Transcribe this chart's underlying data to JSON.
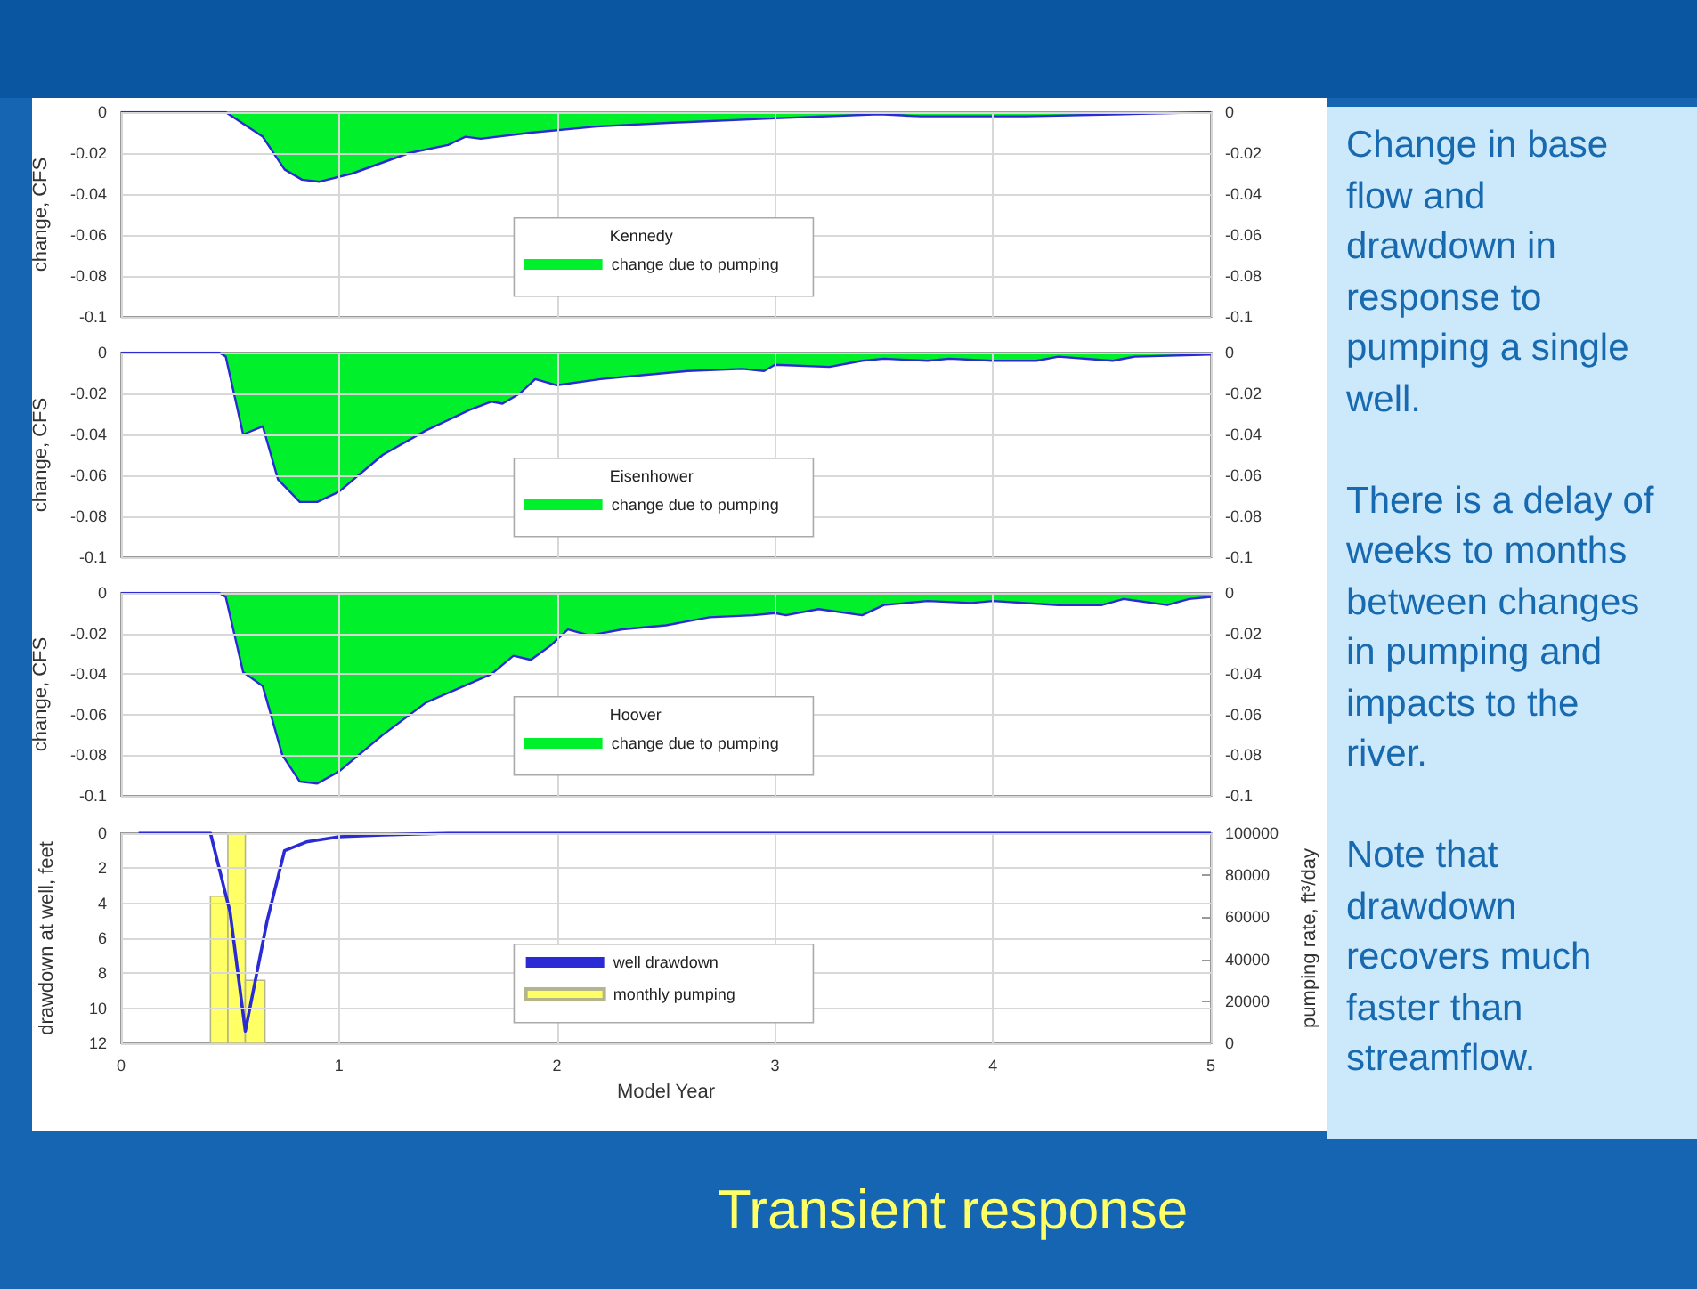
{
  "chart_data": [
    {
      "type": "area",
      "ylabel": "change, CFS",
      "legend_title": "Kennedy",
      "legend": "bottom",
      "grid": true,
      "marker": "none",
      "tick_labels": "y",
      "xlim": [
        0,
        5
      ],
      "xticks": [
        0,
        1,
        2,
        3,
        4,
        5
      ],
      "ylim": [
        -0.1,
        0
      ],
      "yticks": [
        -0.1,
        -0.08,
        -0.06,
        -0.04,
        -0.02,
        0
      ],
      "y2lim": [
        -0.1,
        0
      ],
      "y2ticks": [
        -0.1,
        -0.08,
        -0.06,
        -0.04,
        -0.02,
        0
      ],
      "x": [
        0,
        0.48,
        0.65,
        0.75,
        0.83,
        0.91,
        1.06,
        1.32,
        1.5,
        1.58,
        1.65,
        1.88,
        2.18,
        2.55,
        3.0,
        3.48,
        3.67,
        4.15,
        4.6,
        5
      ],
      "series": [
        {
          "name": "change due to pumping",
          "color": "#00f02c",
          "values": [
            0,
            0,
            -0.012,
            -0.028,
            -0.033,
            -0.034,
            -0.03,
            -0.02,
            -0.016,
            -0.012,
            -0.013,
            -0.01,
            -0.007,
            -0.005,
            -0.003,
            -0.001,
            -0.002,
            -0.002,
            -0.001,
            0
          ]
        }
      ]
    },
    {
      "type": "area",
      "ylabel": "change, CFS",
      "legend_title": "Eisenhower",
      "legend": "bottom",
      "grid": true,
      "marker": "none",
      "tick_labels": "y",
      "xlim": [
        0,
        5
      ],
      "xticks": [
        0,
        1,
        2,
        3,
        4,
        5
      ],
      "ylim": [
        -0.1,
        0
      ],
      "yticks": [
        -0.1,
        -0.08,
        -0.06,
        -0.04,
        -0.02,
        0
      ],
      "y2lim": [
        -0.1,
        0
      ],
      "y2ticks": [
        -0.1,
        -0.08,
        -0.06,
        -0.04,
        -0.02,
        0
      ],
      "x": [
        0,
        0.45,
        0.48,
        0.56,
        0.65,
        0.72,
        0.82,
        0.9,
        1.0,
        1.2,
        1.4,
        1.6,
        1.7,
        1.75,
        1.83,
        1.9,
        2.0,
        2.2,
        2.4,
        2.6,
        2.85,
        2.95,
        3.0,
        3.25,
        3.4,
        3.5,
        3.7,
        3.8,
        4.0,
        4.2,
        4.3,
        4.55,
        4.65,
        5
      ],
      "series": [
        {
          "name": "change due to pumping",
          "color": "#00f02c",
          "values": [
            0,
            0,
            -0.002,
            -0.04,
            -0.036,
            -0.062,
            -0.073,
            -0.073,
            -0.068,
            -0.05,
            -0.038,
            -0.028,
            -0.024,
            -0.025,
            -0.02,
            -0.013,
            -0.016,
            -0.013,
            -0.011,
            -0.009,
            -0.008,
            -0.009,
            -0.006,
            -0.007,
            -0.004,
            -0.003,
            -0.004,
            -0.003,
            -0.004,
            -0.004,
            -0.002,
            -0.004,
            -0.002,
            -0.001
          ]
        }
      ]
    },
    {
      "type": "area",
      "ylabel": "change, CFS",
      "legend_title": "Hoover",
      "legend": "bottom",
      "grid": true,
      "marker": "none",
      "tick_labels": "y",
      "xlim": [
        0,
        5
      ],
      "xticks": [
        0,
        1,
        2,
        3,
        4,
        5
      ],
      "ylim": [
        -0.1,
        0
      ],
      "yticks": [
        -0.1,
        -0.08,
        -0.06,
        -0.04,
        -0.02,
        0
      ],
      "y2lim": [
        -0.1,
        0
      ],
      "y2ticks": [
        -0.1,
        -0.08,
        -0.06,
        -0.04,
        -0.02,
        0
      ],
      "x": [
        0,
        0.45,
        0.48,
        0.56,
        0.65,
        0.74,
        0.82,
        0.9,
        1.0,
        1.2,
        1.4,
        1.55,
        1.7,
        1.8,
        1.88,
        1.97,
        2.05,
        2.15,
        2.3,
        2.5,
        2.7,
        2.9,
        3.0,
        3.05,
        3.2,
        3.4,
        3.5,
        3.7,
        3.9,
        4.0,
        4.3,
        4.5,
        4.6,
        4.8,
        4.9,
        5
      ],
      "series": [
        {
          "name": "change due to pumping",
          "color": "#00f02c",
          "values": [
            0,
            0,
            -0.002,
            -0.039,
            -0.046,
            -0.08,
            -0.093,
            -0.094,
            -0.088,
            -0.07,
            -0.054,
            -0.047,
            -0.04,
            -0.031,
            -0.033,
            -0.026,
            -0.018,
            -0.021,
            -0.018,
            -0.016,
            -0.012,
            -0.011,
            -0.01,
            -0.011,
            -0.008,
            -0.011,
            -0.006,
            -0.004,
            -0.005,
            -0.004,
            -0.006,
            -0.006,
            -0.003,
            -0.006,
            -0.003,
            -0.002
          ]
        }
      ]
    },
    {
      "type": "line",
      "xlabel": "Model Year",
      "ylabel": "drawdown at well, feet",
      "y2label": "pumping rate, ft³/day",
      "legend": "bottom",
      "grid": true,
      "marker": "none",
      "xlim": [
        0,
        5
      ],
      "xticks": [
        0,
        1,
        2,
        3,
        4,
        5
      ],
      "ylim": [
        12,
        0
      ],
      "yticks": [
        0,
        2,
        4,
        6,
        8,
        10,
        12
      ],
      "y2lim": [
        0,
        100000
      ],
      "y2ticks": [
        0,
        20000,
        40000,
        60000,
        80000,
        100000
      ],
      "series": [
        {
          "name": "well drawdown",
          "color": "#2b2bd6",
          "x": [
            0.08,
            0.41,
            0.5,
            0.57,
            0.67,
            0.75,
            0.85,
            1.0,
            1.2,
            1.5,
            5
          ],
          "values": [
            0,
            0,
            4.5,
            11.3,
            5,
            1,
            0.5,
            0.2,
            0.1,
            0,
            0
          ]
        },
        {
          "name": "monthly pumping",
          "type": "histogram",
          "axis": "y2",
          "color": "#ffff66",
          "bins": [
            0.41,
            0.49,
            0.57,
            0.66
          ],
          "values": [
            70000,
            100000,
            30000
          ]
        }
      ]
    },
    {
      "type": "other",
      "title": "Transient response",
      "annotations": [
        "Change in base flow and drawdown in response to pumping a single well.",
        "There is a delay of weeks to months between changes in pumping and impacts to the river.",
        "Note that drawdown recovers much faster than streamflow."
      ]
    }
  ]
}
